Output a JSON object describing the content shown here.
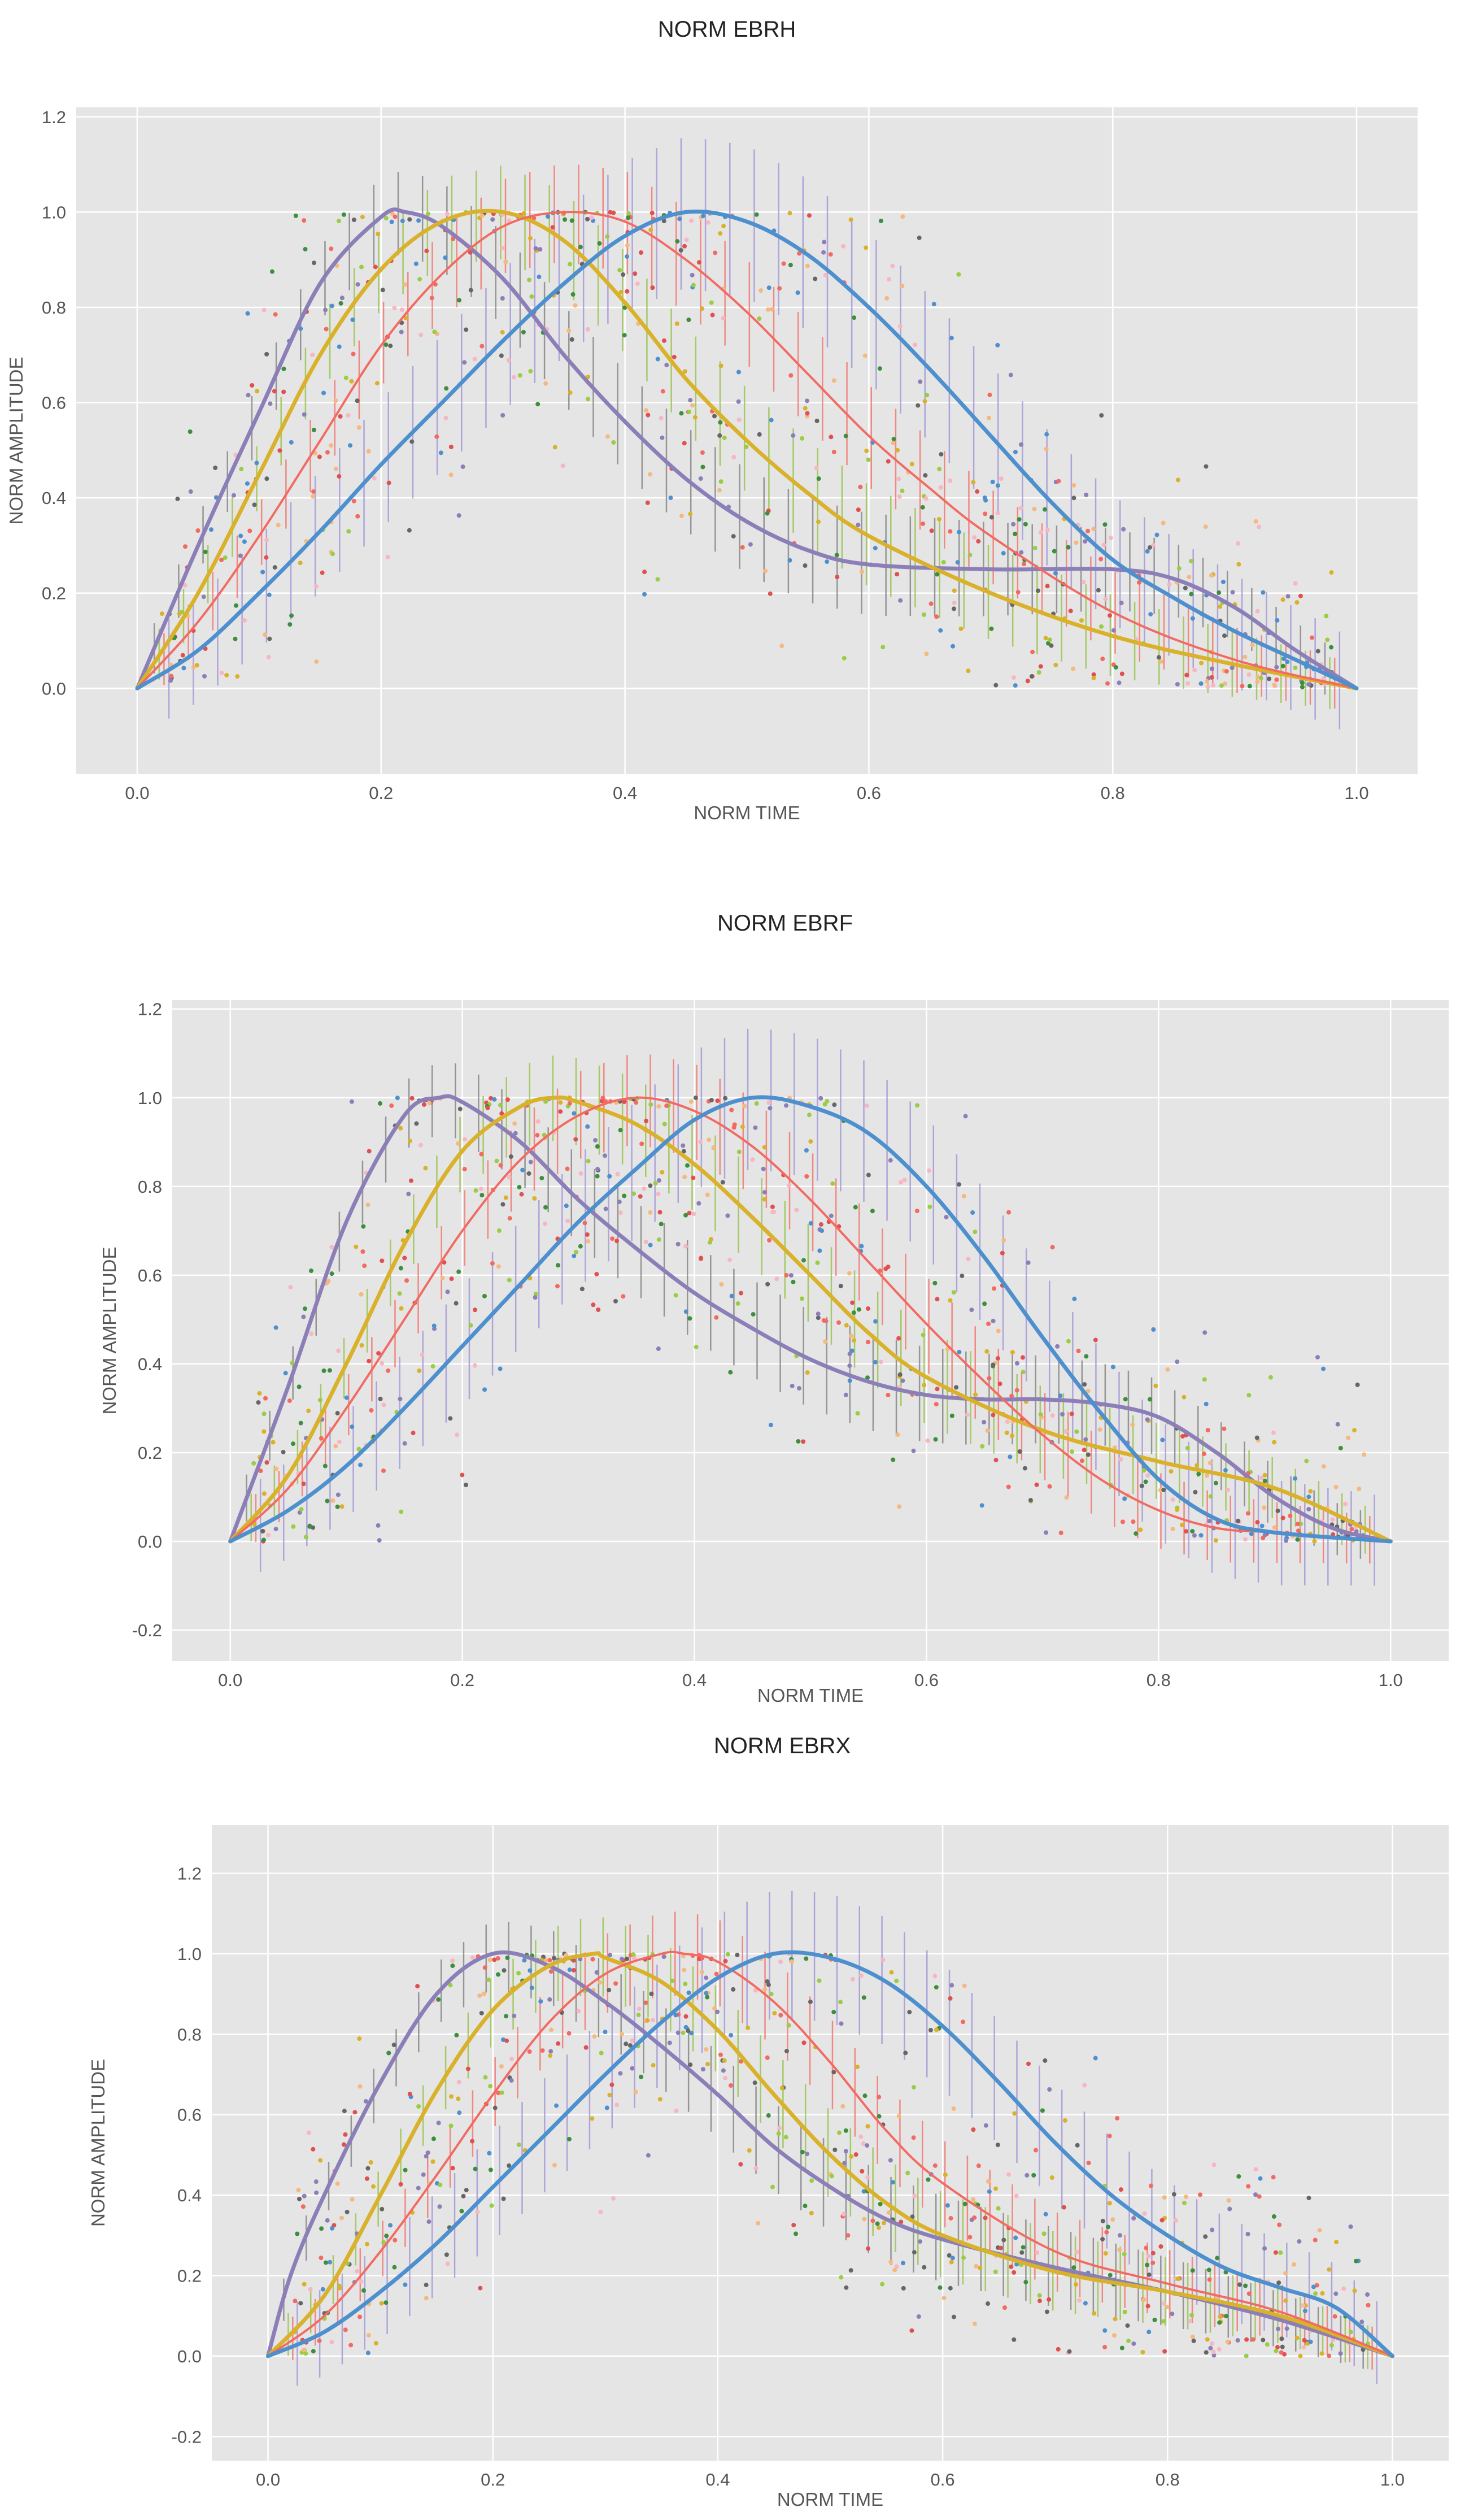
{
  "chart_data": [
    {
      "type": "line",
      "title": "NORM EBRH",
      "xlabel": "NORM TIME",
      "ylabel": "NORM AMPLITUDE",
      "xlim": [
        -0.05,
        1.05
      ],
      "ylim": [
        -0.18,
        1.22
      ],
      "xticks": [
        "0.0",
        "0.2",
        "0.4",
        "0.6",
        "0.8",
        "1.0"
      ],
      "yticks": [
        "0.0",
        "0.2",
        "0.4",
        "0.6",
        "0.8",
        "1.0",
        "1.2"
      ],
      "grid": true,
      "series": [
        {
          "name": "purple",
          "color": "#8c7fb8",
          "x": [
            0,
            0.05,
            0.1,
            0.15,
            0.2,
            0.22,
            0.25,
            0.3,
            0.35,
            0.4,
            0.45,
            0.5,
            0.55,
            0.6,
            0.7,
            0.8,
            0.85,
            0.9,
            0.95,
            1.0
          ],
          "y": [
            0,
            0.3,
            0.58,
            0.85,
            0.99,
            1.0,
            0.97,
            0.86,
            0.7,
            0.56,
            0.44,
            0.35,
            0.29,
            0.26,
            0.25,
            0.25,
            0.23,
            0.17,
            0.08,
            0
          ]
        },
        {
          "name": "yellow",
          "color": "#d9b12a",
          "x": [
            0,
            0.05,
            0.1,
            0.15,
            0.2,
            0.25,
            0.3,
            0.35,
            0.4,
            0.45,
            0.5,
            0.55,
            0.6,
            0.7,
            0.8,
            0.9,
            1.0
          ],
          "y": [
            0,
            0.2,
            0.45,
            0.7,
            0.88,
            0.98,
            1.0,
            0.94,
            0.81,
            0.65,
            0.52,
            0.41,
            0.32,
            0.2,
            0.11,
            0.05,
            0
          ]
        },
        {
          "name": "red",
          "color": "#f26a62",
          "x": [
            0,
            0.05,
            0.1,
            0.15,
            0.2,
            0.25,
            0.3,
            0.35,
            0.4,
            0.45,
            0.5,
            0.55,
            0.6,
            0.65,
            0.7,
            0.8,
            0.9,
            1.0
          ],
          "y": [
            0,
            0.14,
            0.32,
            0.52,
            0.72,
            0.87,
            0.97,
            1.0,
            0.98,
            0.9,
            0.79,
            0.66,
            0.53,
            0.42,
            0.32,
            0.16,
            0.06,
            0
          ]
        },
        {
          "name": "blue",
          "color": "#4e8fce",
          "x": [
            0,
            0.05,
            0.1,
            0.15,
            0.2,
            0.25,
            0.3,
            0.35,
            0.4,
            0.45,
            0.5,
            0.55,
            0.6,
            0.65,
            0.7,
            0.75,
            0.8,
            0.85,
            0.9,
            0.95,
            1.0
          ],
          "y": [
            0,
            0.08,
            0.2,
            0.33,
            0.47,
            0.6,
            0.73,
            0.85,
            0.95,
            1.0,
            0.98,
            0.91,
            0.8,
            0.67,
            0.53,
            0.39,
            0.27,
            0.19,
            0.12,
            0.06,
            0
          ]
        }
      ]
    },
    {
      "type": "line",
      "title": "NORM EBRF",
      "xlabel": "NORM TIME",
      "ylabel": "NORM AMPLITUDE",
      "xlim": [
        -0.05,
        1.05
      ],
      "ylim": [
        -0.27,
        1.22
      ],
      "xticks": [
        "0.0",
        "0.2",
        "0.4",
        "0.6",
        "0.8",
        "1.0"
      ],
      "yticks": [
        "-0.2",
        "0.0",
        "0.2",
        "0.4",
        "0.6",
        "0.8",
        "1.0",
        "1.2"
      ],
      "grid": true,
      "series": [
        {
          "name": "purple",
          "color": "#8c7fb8",
          "x": [
            0,
            0.05,
            0.1,
            0.15,
            0.18,
            0.2,
            0.25,
            0.3,
            0.35,
            0.4,
            0.45,
            0.5,
            0.55,
            0.6,
            0.65,
            0.7,
            0.75,
            0.8,
            0.85,
            0.9,
            0.95,
            1.0
          ],
          "y": [
            0,
            0.35,
            0.72,
            0.96,
            1.0,
            0.99,
            0.9,
            0.77,
            0.66,
            0.56,
            0.48,
            0.41,
            0.36,
            0.33,
            0.32,
            0.32,
            0.31,
            0.28,
            0.2,
            0.1,
            0.03,
            0
          ]
        },
        {
          "name": "yellow",
          "color": "#d9b12a",
          "x": [
            0,
            0.05,
            0.1,
            0.15,
            0.2,
            0.25,
            0.28,
            0.3,
            0.35,
            0.4,
            0.45,
            0.5,
            0.55,
            0.6,
            0.7,
            0.8,
            0.9,
            1.0
          ],
          "y": [
            0,
            0.15,
            0.4,
            0.67,
            0.88,
            0.98,
            1.0,
            0.99,
            0.94,
            0.85,
            0.73,
            0.6,
            0.47,
            0.37,
            0.25,
            0.18,
            0.12,
            0
          ]
        },
        {
          "name": "red",
          "color": "#f26a62",
          "x": [
            0,
            0.05,
            0.1,
            0.15,
            0.2,
            0.25,
            0.3,
            0.35,
            0.4,
            0.45,
            0.5,
            0.55,
            0.6,
            0.65,
            0.7,
            0.75,
            0.8,
            0.85,
            0.9,
            1.0
          ],
          "y": [
            0,
            0.12,
            0.3,
            0.5,
            0.7,
            0.86,
            0.96,
            1.0,
            0.97,
            0.89,
            0.77,
            0.63,
            0.49,
            0.36,
            0.24,
            0.14,
            0.07,
            0.03,
            0.02,
            0
          ]
        },
        {
          "name": "blue",
          "color": "#4e8fce",
          "x": [
            0,
            0.05,
            0.1,
            0.15,
            0.2,
            0.25,
            0.3,
            0.35,
            0.4,
            0.45,
            0.5,
            0.55,
            0.6,
            0.65,
            0.7,
            0.75,
            0.8,
            0.85,
            0.9,
            1.0
          ],
          "y": [
            0,
            0.07,
            0.17,
            0.3,
            0.44,
            0.58,
            0.72,
            0.84,
            0.95,
            1.0,
            0.98,
            0.92,
            0.8,
            0.64,
            0.46,
            0.29,
            0.14,
            0.05,
            0.02,
            0
          ]
        }
      ]
    },
    {
      "type": "line",
      "title": "NORM EBRX",
      "xlabel": "NORM TIME",
      "ylabel": "NORM AMPLITUDE",
      "xlim": [
        -0.05,
        1.05
      ],
      "ylim": [
        -0.26,
        1.32
      ],
      "xticks": [
        "0.0",
        "0.2",
        "0.4",
        "0.6",
        "0.8",
        "1.0"
      ],
      "yticks": [
        "-0.2",
        "0.0",
        "0.2",
        "0.4",
        "0.6",
        "0.8",
        "1.0",
        "1.2"
      ],
      "grid": true,
      "series": [
        {
          "name": "purple",
          "color": "#8c7fb8",
          "x": [
            0,
            0.02,
            0.05,
            0.1,
            0.15,
            0.2,
            0.25,
            0.3,
            0.35,
            0.4,
            0.45,
            0.5,
            0.55,
            0.6,
            0.7,
            0.8,
            0.9,
            1.0
          ],
          "y": [
            0,
            0.2,
            0.4,
            0.68,
            0.9,
            1.0,
            0.97,
            0.88,
            0.77,
            0.65,
            0.52,
            0.42,
            0.34,
            0.29,
            0.22,
            0.16,
            0.09,
            0
          ]
        },
        {
          "name": "yellow",
          "color": "#d9b12a",
          "x": [
            0,
            0.05,
            0.1,
            0.15,
            0.2,
            0.25,
            0.29,
            0.3,
            0.35,
            0.4,
            0.45,
            0.5,
            0.55,
            0.6,
            0.7,
            0.8,
            0.9,
            1.0
          ],
          "y": [
            0,
            0.15,
            0.4,
            0.66,
            0.86,
            0.97,
            1.0,
            0.99,
            0.93,
            0.81,
            0.65,
            0.5,
            0.38,
            0.3,
            0.21,
            0.16,
            0.1,
            0
          ]
        },
        {
          "name": "red",
          "color": "#f26a62",
          "x": [
            0,
            0.05,
            0.1,
            0.15,
            0.2,
            0.25,
            0.3,
            0.35,
            0.37,
            0.4,
            0.45,
            0.5,
            0.55,
            0.6,
            0.7,
            0.8,
            0.9,
            1.0
          ],
          "y": [
            0,
            0.1,
            0.26,
            0.45,
            0.65,
            0.83,
            0.95,
            1.0,
            1.0,
            0.98,
            0.88,
            0.73,
            0.56,
            0.43,
            0.26,
            0.18,
            0.11,
            0
          ]
        },
        {
          "name": "blue",
          "color": "#4e8fce",
          "x": [
            0,
            0.05,
            0.1,
            0.15,
            0.2,
            0.25,
            0.3,
            0.35,
            0.4,
            0.45,
            0.5,
            0.55,
            0.6,
            0.65,
            0.7,
            0.75,
            0.8,
            0.85,
            0.9,
            0.95,
            1.0
          ],
          "y": [
            0,
            0.06,
            0.16,
            0.28,
            0.42,
            0.56,
            0.7,
            0.83,
            0.94,
            1.0,
            0.99,
            0.93,
            0.82,
            0.68,
            0.53,
            0.4,
            0.3,
            0.22,
            0.17,
            0.12,
            0
          ]
        }
      ]
    }
  ]
}
